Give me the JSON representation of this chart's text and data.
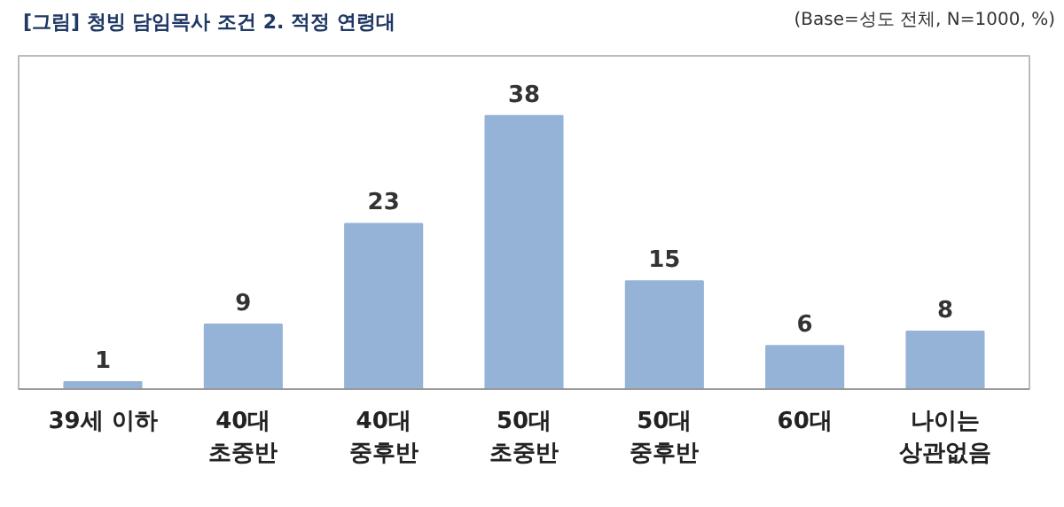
{
  "chart_data": {
    "type": "bar",
    "title": "[그림] 청빙 담임목사 조건 2. 적정 연령대",
    "annotations": [
      "(Base=성도 전체, N=1000, %)"
    ],
    "categories": [
      "39세 이하",
      "40대\n초중반",
      "40대\n중후반",
      "50대\n초중반",
      "50대\n중후반",
      "60대",
      "나이는\n상관없음"
    ],
    "values": [
      1,
      9,
      23,
      38,
      15,
      6,
      8
    ],
    "color": "#95b3d7",
    "data_labels": true
  }
}
